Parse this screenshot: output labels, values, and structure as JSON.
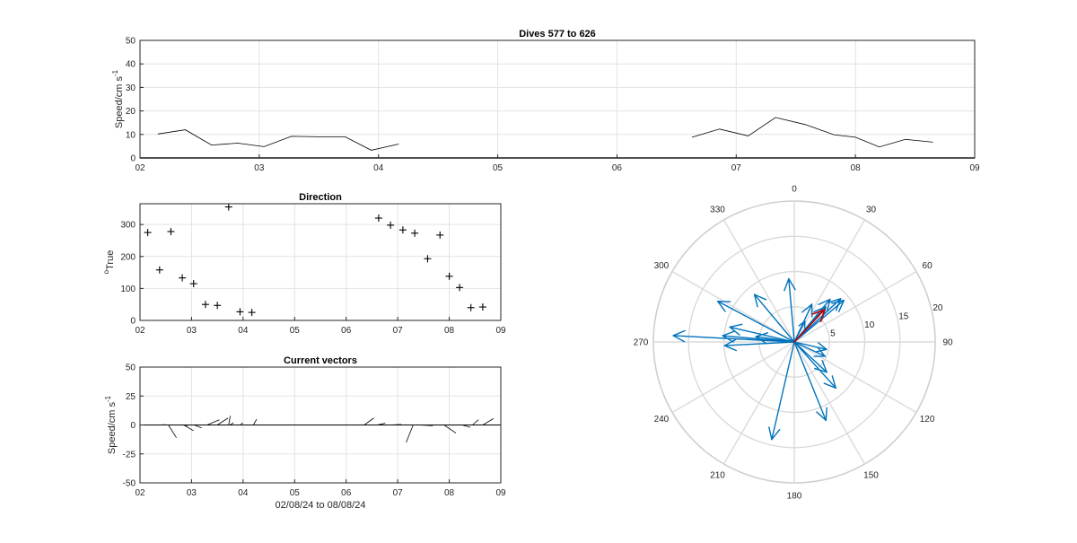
{
  "figure": {
    "background": "#ffffff",
    "axis_color": "#262626",
    "grid_color": "#e3e3e3"
  },
  "chart_data": [
    {
      "type": "line",
      "title": "Dives 577 to 626",
      "xlabel": "",
      "ylabel": "Speed/cm s",
      "ylabel_sup": "-1",
      "xlim": [
        2,
        9
      ],
      "ylim": [
        0,
        50
      ],
      "xticks": [
        "02",
        "03",
        "04",
        "05",
        "06",
        "07",
        "08",
        "09"
      ],
      "yticks": [
        "0",
        "10",
        "20",
        "30",
        "40",
        "50"
      ],
      "grid": true,
      "line_color": "#000000",
      "segments": [
        {
          "x": [
            2.15,
            2.38,
            2.6,
            2.82,
            3.04,
            3.27,
            3.5,
            3.72,
            3.94,
            4.17
          ],
          "y": [
            10.2,
            12.0,
            5.5,
            6.3,
            4.8,
            9.2,
            9.0,
            9.0,
            3.3,
            5.9
          ]
        },
        {
          "x": [
            6.63,
            6.86,
            7.1,
            7.33,
            7.58,
            7.82,
            8.0,
            8.2,
            8.42,
            8.65
          ],
          "y": [
            8.8,
            12.3,
            9.4,
            17.2,
            14.2,
            9.9,
            8.8,
            4.7,
            7.9,
            6.7
          ]
        }
      ]
    },
    {
      "type": "scatter",
      "title": "Direction",
      "xlabel": "",
      "ylabel": "True",
      "ylabel_sup": "o",
      "xlim": [
        2,
        9
      ],
      "ylim": [
        0,
        365
      ],
      "xticks": [
        "02",
        "03",
        "04",
        "05",
        "06",
        "07",
        "08",
        "09"
      ],
      "yticks": [
        "0",
        "100",
        "200",
        "300"
      ],
      "grid": true,
      "marker": "+",
      "x": [
        2.15,
        2.38,
        2.6,
        2.82,
        3.04,
        3.27,
        3.5,
        3.72,
        3.94,
        4.17,
        6.63,
        6.86,
        7.1,
        7.33,
        7.58,
        7.82,
        8.0,
        8.2,
        8.42,
        8.65
      ],
      "y": [
        275,
        158,
        278,
        133,
        115,
        50,
        47,
        355,
        27,
        25,
        320,
        298,
        283,
        273,
        193,
        267,
        138,
        103,
        40,
        42
      ]
    },
    {
      "type": "line",
      "title": "Current vectors",
      "xlabel": "02/08/24 to 08/08/24",
      "ylabel": "Speed/cm s",
      "ylabel_sup": "-1",
      "xlim": [
        2,
        9
      ],
      "ylim": [
        -50,
        50
      ],
      "xticks": [
        "02",
        "03",
        "04",
        "05",
        "06",
        "07",
        "08",
        "09"
      ],
      "yticks": [
        "50",
        "25",
        "0",
        "-25",
        "-50"
      ],
      "ytick_values": [
        50,
        25,
        0,
        -25,
        -50
      ],
      "grid": true,
      "stick_color": "#000000",
      "sticks": [
        {
          "x": 2.35,
          "u": 1.5,
          "v": 0.3
        },
        {
          "x": 2.55,
          "u": 1.5,
          "v": -11
        },
        {
          "x": 2.8,
          "u": 1.2,
          "v": -0.5
        },
        {
          "x": 2.85,
          "u": 1.8,
          "v": -5
        },
        {
          "x": 3.05,
          "u": 1.4,
          "v": -2.5
        },
        {
          "x": 3.3,
          "u": 2.3,
          "v": 4.5
        },
        {
          "x": 3.5,
          "u": 2.0,
          "v": 6
        },
        {
          "x": 3.72,
          "u": 0.3,
          "v": 8
        },
        {
          "x": 3.75,
          "u": 0.6,
          "v": 2
        },
        {
          "x": 3.95,
          "u": 0.4,
          "v": 2
        },
        {
          "x": 4.2,
          "u": 0.6,
          "v": 5
        },
        {
          "x": 6.35,
          "u": 1.8,
          "v": 6
        },
        {
          "x": 6.6,
          "u": 1.5,
          "v": 1.5
        },
        {
          "x": 6.85,
          "u": 2.1,
          "v": 0.5
        },
        {
          "x": 7.1,
          "u": 1.6,
          "v": 0
        },
        {
          "x": 7.3,
          "u": -1.3,
          "v": -15
        },
        {
          "x": 7.4,
          "u": 2.7,
          "v": -0.6
        },
        {
          "x": 7.9,
          "u": 2.2,
          "v": -7
        },
        {
          "x": 8.25,
          "u": 1.5,
          "v": -2
        },
        {
          "x": 8.45,
          "u": 1.1,
          "v": 4.5
        },
        {
          "x": 8.65,
          "u": 2.0,
          "v": 5.5
        }
      ]
    },
    {
      "type": "polar",
      "title": "",
      "theta_ticks": [
        "0",
        "30",
        "60",
        "90",
        "120",
        "150",
        "180",
        "210",
        "240",
        "270",
        "300",
        "330"
      ],
      "r_ticks": [
        "5",
        "10",
        "15",
        "20"
      ],
      "rlim": [
        0,
        20
      ],
      "grid": true,
      "arrow_color": "#0072bd",
      "highlight_color": "#c00000",
      "arrows": [
        {
          "dir": 275,
          "speed": 10.2
        },
        {
          "dir": 158,
          "speed": 12.0
        },
        {
          "dir": 278,
          "speed": 5.5
        },
        {
          "dir": 133,
          "speed": 6.3
        },
        {
          "dir": 115,
          "speed": 4.8
        },
        {
          "dir": 50,
          "speed": 9.2
        },
        {
          "dir": 47,
          "speed": 9.0
        },
        {
          "dir": 355,
          "speed": 9.0
        },
        {
          "dir": 27,
          "speed": 3.3
        },
        {
          "dir": 25,
          "speed": 5.9
        },
        {
          "dir": 320,
          "speed": 8.8
        },
        {
          "dir": 298,
          "speed": 12.3
        },
        {
          "dir": 283,
          "speed": 9.4
        },
        {
          "dir": 273,
          "speed": 17.2
        },
        {
          "dir": 193,
          "speed": 14.2
        },
        {
          "dir": 267,
          "speed": 9.9
        },
        {
          "dir": 138,
          "speed": 8.8
        },
        {
          "dir": 103,
          "speed": 4.7
        },
        {
          "dir": 40,
          "speed": 7.9
        },
        {
          "dir": 42,
          "speed": 6.7
        }
      ],
      "highlight": {
        "dir": 43,
        "speed": 6.3
      }
    }
  ]
}
